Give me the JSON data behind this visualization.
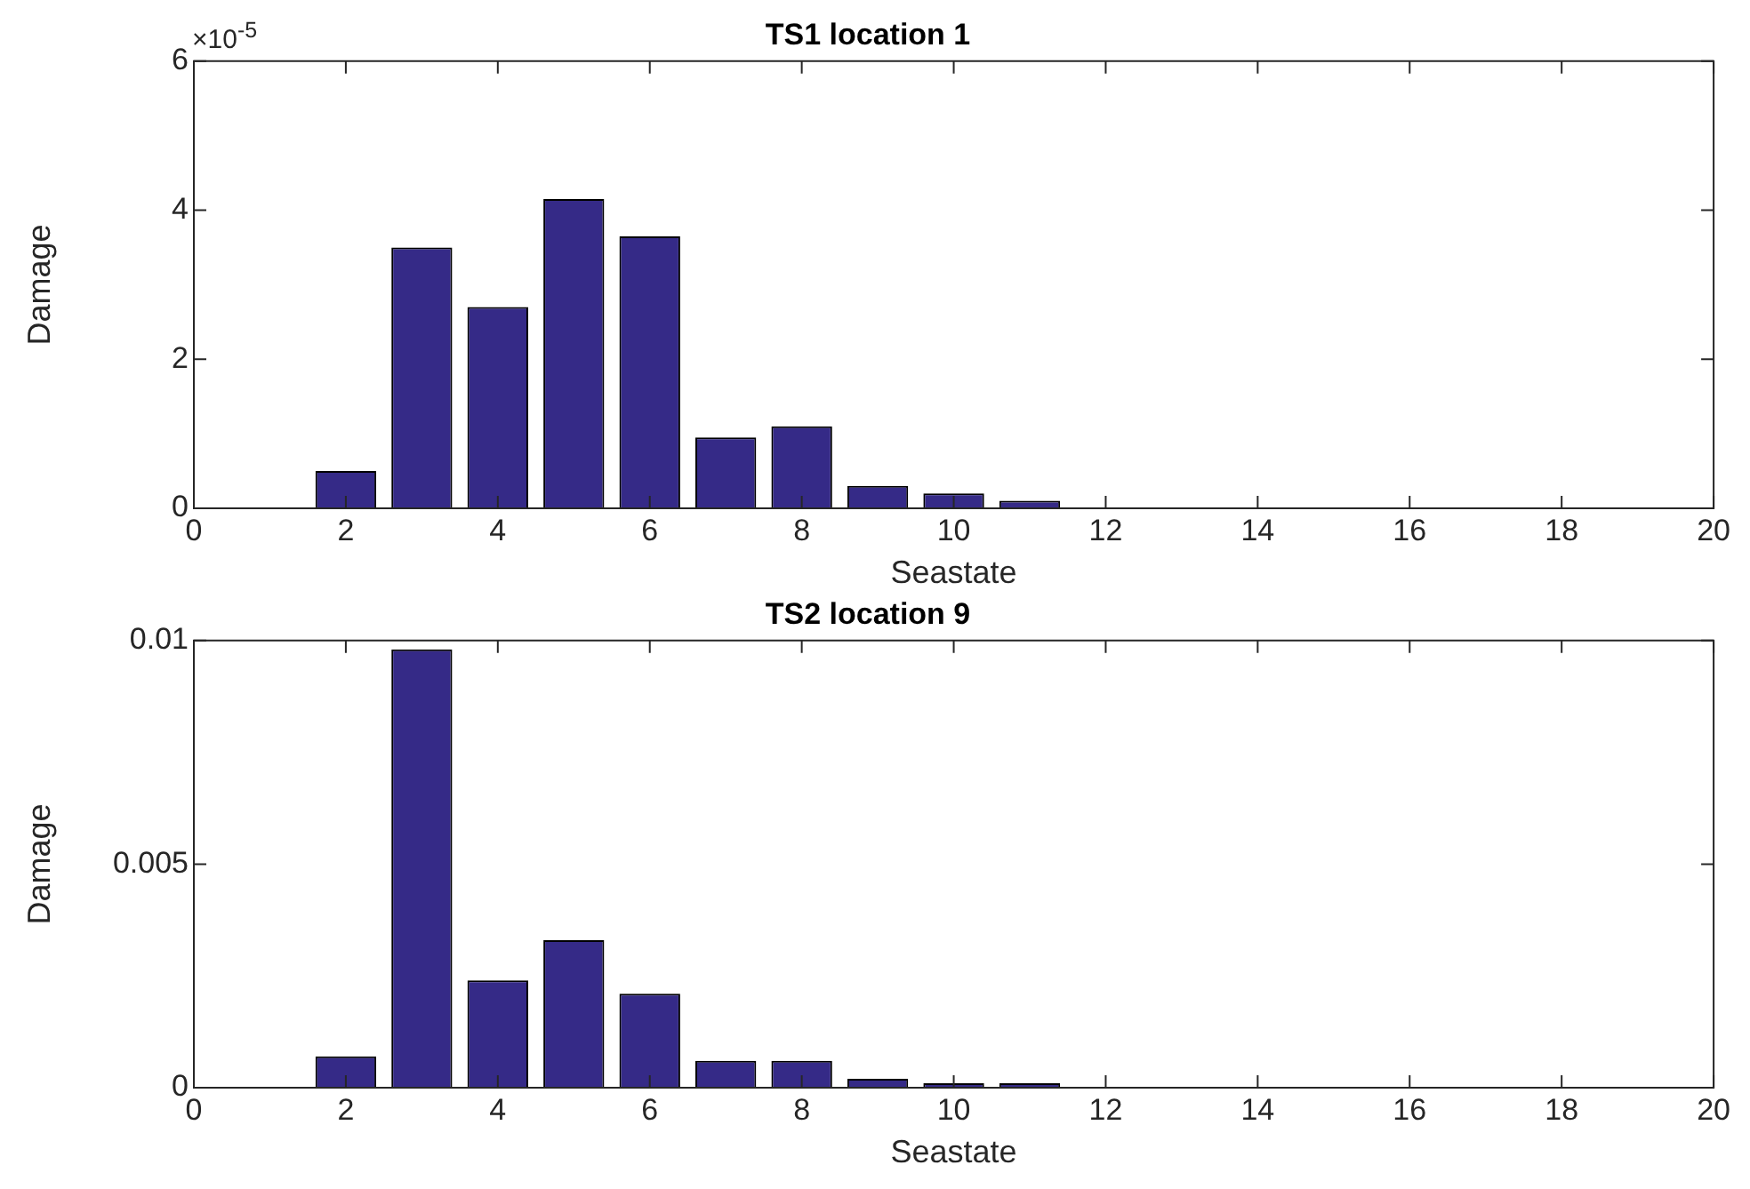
{
  "chart_data": [
    {
      "type": "bar",
      "title": "TS1 location 1",
      "xlabel": "Seastate",
      "ylabel": "Damage",
      "annotations": [
        "×10$^{-5}$"
      ],
      "x": [
        1,
        2,
        3,
        4,
        5,
        6,
        7,
        8,
        9,
        10,
        11,
        12,
        13,
        14,
        15,
        16,
        17,
        18,
        19
      ],
      "values": [
        0,
        0.5,
        3.5,
        2.7,
        4.15,
        3.65,
        0.95,
        1.1,
        0.3,
        0.2,
        0.1,
        0,
        0,
        0,
        0,
        0,
        0,
        0,
        0
      ],
      "color": "#352a87",
      "xlim": [
        0,
        20
      ],
      "xticks": [
        0,
        2,
        4,
        6,
        8,
        10,
        12,
        14,
        16,
        18,
        20
      ],
      "ylim": [
        0,
        6
      ],
      "yticks": [
        0,
        2,
        4,
        6
      ],
      "grid": false,
      "legend": false
    },
    {
      "type": "bar",
      "title": "TS2 location 9",
      "xlabel": "Seastate",
      "ylabel": "Damage",
      "x": [
        1,
        2,
        3,
        4,
        5,
        6,
        7,
        8,
        9,
        10,
        11,
        12,
        13,
        14,
        15,
        16,
        17,
        18,
        19
      ],
      "values": [
        0,
        0.0007,
        0.0098,
        0.0024,
        0.0033,
        0.0021,
        0.0006,
        0.0006,
        0.0002,
        0.0001,
        0.0001,
        0,
        0,
        0,
        0,
        0,
        0,
        0,
        0
      ],
      "color": "#352a87",
      "xlim": [
        0,
        20
      ],
      "xticks": [
        0,
        2,
        4,
        6,
        8,
        10,
        12,
        14,
        16,
        18,
        20
      ],
      "ylim": [
        0,
        0.01
      ],
      "yticks": [
        0,
        0.005,
        0.01
      ],
      "grid": false,
      "legend": false
    }
  ]
}
